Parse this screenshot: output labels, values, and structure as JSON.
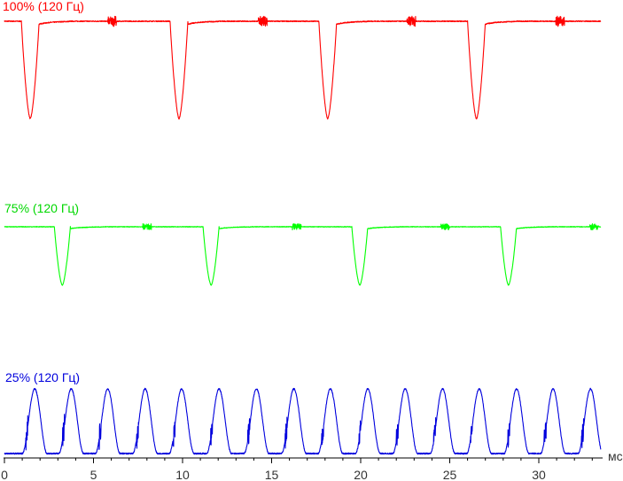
{
  "chart_data": {
    "type": "line",
    "x_unit": "мс",
    "xlim": [
      0,
      33.5
    ],
    "x_ticks": [
      0,
      5,
      10,
      15,
      20,
      25,
      30
    ],
    "x_tick_labels": [
      "0",
      "5",
      "10",
      "15",
      "20",
      "25",
      "30"
    ],
    "grid": false,
    "series": [
      {
        "name": "100% (120 Гц)",
        "color": "#ff0000",
        "shape": "dips",
        "baseline": 1.0,
        "min_level": 0.0,
        "dip_width_ms": 0.5,
        "events_ms": [
          1.45,
          9.8,
          18.15,
          26.5
        ],
        "noise_bursts_ms": [
          5.85,
          14.3,
          22.65,
          31.0
        ]
      },
      {
        "name": "75% (120 Гц)",
        "color": "#00ff00",
        "shape": "dips",
        "baseline": 1.0,
        "min_level": 0.0,
        "dip_width_ms": 0.45,
        "events_ms": [
          3.25,
          11.6,
          19.95,
          28.3
        ],
        "noise_bursts_ms": [
          7.8,
          16.2,
          24.55,
          32.9
        ]
      },
      {
        "name": "25% (120 Гц)",
        "color": "#0000dd",
        "shape": "pulses",
        "baseline": 0.0,
        "max_level": 1.0,
        "pulse_width_ms": 0.7,
        "events_ms": [
          1.7,
          3.75,
          5.8,
          7.9,
          9.95,
          12.05,
          14.15,
          16.25,
          18.3,
          20.4,
          22.5,
          24.6,
          26.65,
          28.75,
          30.8,
          32.9
        ]
      }
    ]
  }
}
